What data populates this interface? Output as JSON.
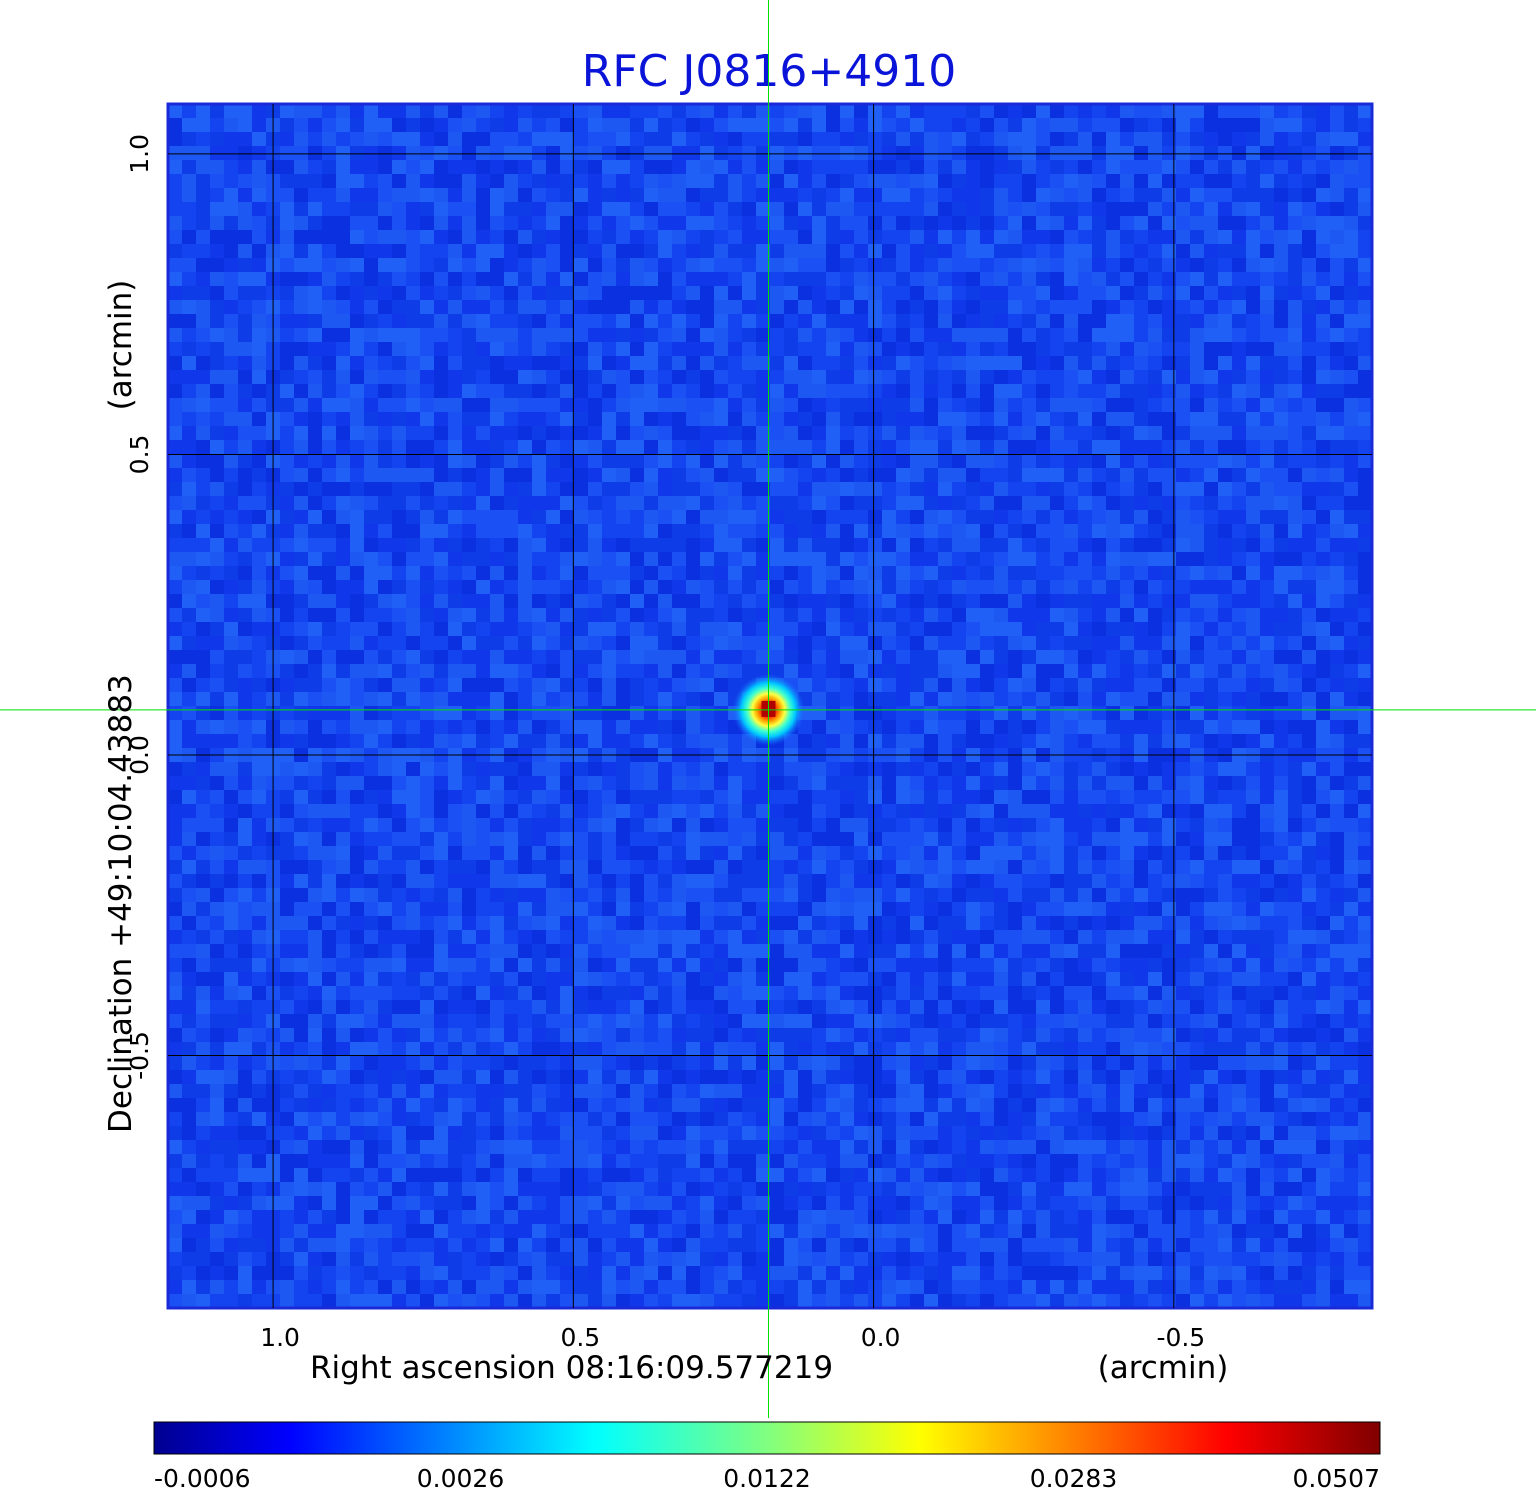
{
  "chart_data": {
    "type": "heatmap",
    "title": "RFC J0816+4910",
    "xlabel": "Right ascension  08:16:09.577219",
    "xunit": "(arcmin)",
    "ylabel": "Declination  +49:10:04.43883",
    "yunit": "(arcmin)",
    "x_ticks": [
      "1.0",
      "0.5",
      "0.0",
      "-0.5"
    ],
    "x_tick_values": [
      1.0,
      0.5,
      0.0,
      -0.5
    ],
    "y_ticks": [
      "1.0",
      "0.5",
      "0.0",
      "-0.5"
    ],
    "y_tick_values": [
      1.0,
      0.5,
      0.0,
      -0.5
    ],
    "xlim": [
      1.175,
      -0.83
    ],
    "ylim": [
      -0.92,
      1.083
    ],
    "grid": true,
    "crosshair": {
      "x": 0.175,
      "y": 0.075,
      "color": "#00e000"
    },
    "source_peak": {
      "x": 0.175,
      "y": 0.075,
      "value": 0.0507
    },
    "colorbar": {
      "colormap": "jet",
      "tick_labels": [
        "-0.0006",
        "0.0026",
        "0.0122",
        "0.0283",
        "0.0507"
      ],
      "min": -0.0006,
      "max": 0.0507
    },
    "colors": {
      "title": "#0a14d8",
      "background_map": "#1444f0",
      "grid": "#000000"
    }
  }
}
